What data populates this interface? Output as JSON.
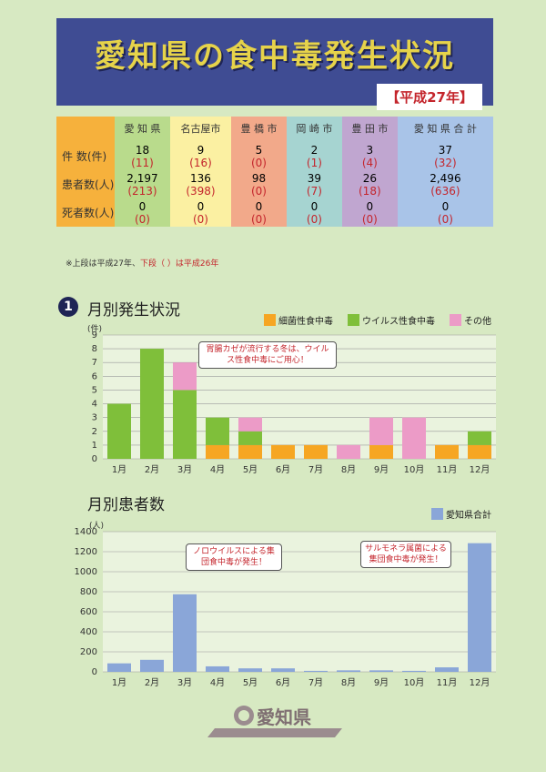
{
  "title": "愛知県の食中毒発生状況",
  "year_badge": "【平成27年】",
  "summary_table": {
    "columns": [
      "愛 知 県",
      "名古屋市",
      "豊 橋 市",
      "岡 崎 市",
      "豊 田 市",
      "愛 知 県 合 計"
    ],
    "rows": [
      {
        "label": "件 数(件)",
        "current": [
          "18",
          "9",
          "5",
          "2",
          "3",
          "37"
        ],
        "previous": [
          "(11)",
          "(16)",
          "(0)",
          "(1)",
          "(4)",
          "(32)"
        ]
      },
      {
        "label": "患者数(人)",
        "current": [
          "2,197",
          "136",
          "98",
          "39",
          "26",
          "2,496"
        ],
        "previous": [
          "(213)",
          "(398)",
          "(0)",
          "(7)",
          "(18)",
          "(636)"
        ]
      },
      {
        "label": "死者数(人)",
        "current": [
          "0",
          "0",
          "0",
          "0",
          "0",
          "0"
        ],
        "previous": [
          "(0)",
          "(0)",
          "(0)",
          "(0)",
          "(0)",
          "(0)"
        ]
      }
    ]
  },
  "note": {
    "prefix": "※上段は平成27年、",
    "red": "下段（ ）は平成26年"
  },
  "section1": {
    "number": "1",
    "title": "月別発生状況"
  },
  "section2": {
    "title": "月別患者数"
  },
  "callouts": {
    "c1": "胃腸カゼが流行する冬は、ウイルス性食中毒にご用心！",
    "c2": "ノロウイルスによる集団食中毒が発生！",
    "c3": "サルモネラ属菌による集団食中毒が発生！"
  },
  "logo": {
    "text": "愛知県"
  },
  "colors": {
    "bacteria": "#f6a623",
    "virus": "#7fbf3a",
    "other": "#ec9bc7",
    "patients": "#8aa6d8"
  },
  "chart_data": [
    {
      "type": "bar",
      "stacked": true,
      "title": "月別発生状況",
      "categories": [
        "1月",
        "2月",
        "3月",
        "4月",
        "5月",
        "6月",
        "7月",
        "8月",
        "9月",
        "10月",
        "11月",
        "12月"
      ],
      "series": [
        {
          "name": "細菌性食中毒",
          "values": [
            0,
            0,
            0,
            1,
            1,
            1,
            1,
            0,
            1,
            0,
            1,
            1
          ]
        },
        {
          "name": "ウイルス性食中毒",
          "values": [
            4,
            8,
            5,
            2,
            1,
            0,
            0,
            0,
            0,
            0,
            0,
            1
          ]
        },
        {
          "name": "その他",
          "values": [
            0,
            0,
            2,
            0,
            1,
            0,
            0,
            1,
            2,
            3,
            0,
            0
          ]
        }
      ],
      "ylabel": "(件)",
      "yticks": [
        "0",
        "1",
        "2",
        "3",
        "4",
        "5",
        "6",
        "7",
        "8",
        "9"
      ],
      "ylim": [
        0,
        9
      ],
      "grid": true,
      "legend": "top-right"
    },
    {
      "type": "bar",
      "title": "月別患者数",
      "categories": [
        "1月",
        "2月",
        "3月",
        "4月",
        "5月",
        "6月",
        "7月",
        "8月",
        "9月",
        "10月",
        "11月",
        "12月"
      ],
      "series": [
        {
          "name": "愛知県合計",
          "values": [
            85,
            120,
            775,
            55,
            35,
            35,
            10,
            15,
            15,
            10,
            45,
            1285
          ]
        }
      ],
      "ylabel": "(人)",
      "yticks": [
        "0",
        "200",
        "400",
        "600",
        "800",
        "1000",
        "1200",
        "1400"
      ],
      "ylim": [
        0,
        1400
      ],
      "grid": true,
      "legend": "top-right"
    }
  ]
}
